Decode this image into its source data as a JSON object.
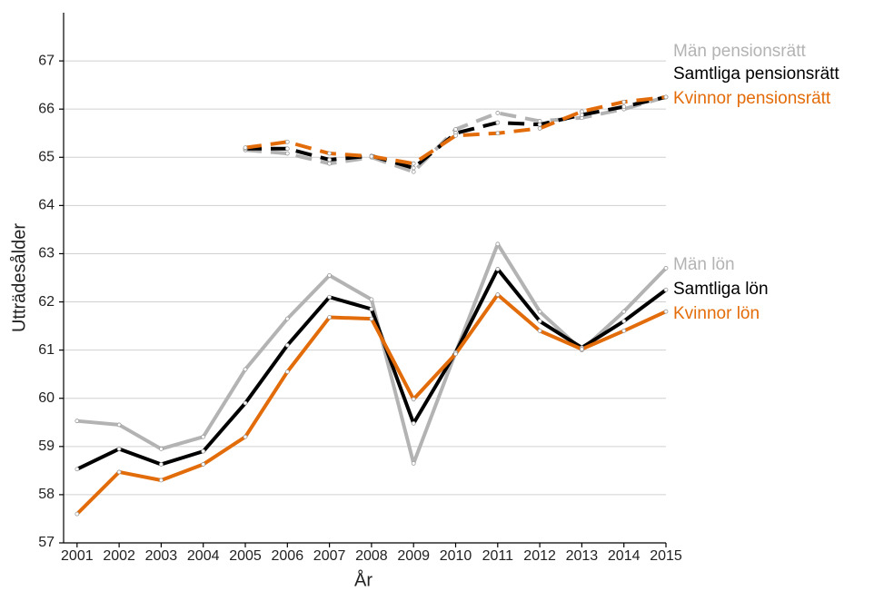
{
  "chart_data": {
    "type": "line",
    "y_label": "Utträdesålder",
    "x_label": "År",
    "x": [
      2001,
      2002,
      2003,
      2004,
      2005,
      2006,
      2007,
      2008,
      2009,
      2010,
      2011,
      2012,
      2013,
      2014,
      2015
    ],
    "xlim": [
      2000.68,
      2015
    ],
    "xticks": [
      2001,
      2002,
      2003,
      2004,
      2005,
      2006,
      2007,
      2008,
      2009,
      2010,
      2011,
      2012,
      2013,
      2014,
      2015
    ],
    "ylim": [
      57,
      68
    ],
    "yticks": [
      57,
      58,
      59,
      60,
      61,
      62,
      63,
      64,
      65,
      66,
      67
    ],
    "grid": true,
    "series": [
      {
        "name": "Män pensionsrätt",
        "color": "#b3b3b3",
        "dashed": true,
        "values": [
          null,
          null,
          null,
          null,
          65.15,
          65.08,
          64.87,
          65.0,
          64.7,
          65.58,
          65.92,
          65.75,
          65.82,
          66.0,
          66.25
        ]
      },
      {
        "name": "Samtliga pensionsrätt",
        "color": "#000000",
        "dashed": true,
        "values": [
          null,
          null,
          null,
          null,
          65.18,
          65.18,
          64.95,
          65.03,
          64.78,
          65.5,
          65.72,
          65.68,
          65.88,
          66.05,
          66.25
        ]
      },
      {
        "name": "Kvinnor pensionsrätt",
        "color": "#e36c0a",
        "dashed": true,
        "values": [
          null,
          null,
          null,
          null,
          65.2,
          65.32,
          65.08,
          65.02,
          64.87,
          65.45,
          65.5,
          65.6,
          65.95,
          66.15,
          66.25
        ]
      },
      {
        "name": "Män lön",
        "color": "#b3b3b3",
        "dashed": false,
        "values": [
          59.53,
          59.45,
          58.95,
          59.2,
          60.6,
          61.65,
          62.55,
          62.05,
          58.65,
          60.95,
          63.2,
          61.8,
          61.0,
          61.8,
          62.7
        ]
      },
      {
        "name": "Samtliga lön",
        "color": "#000000",
        "dashed": false,
        "values": [
          58.53,
          58.95,
          58.63,
          58.9,
          59.9,
          61.1,
          62.1,
          61.85,
          59.48,
          60.95,
          62.68,
          61.6,
          61.05,
          61.6,
          62.25
        ]
      },
      {
        "name": "Kvinnor lön",
        "color": "#e36c0a",
        "dashed": false,
        "values": [
          57.6,
          58.47,
          58.3,
          58.63,
          59.2,
          60.55,
          61.68,
          61.65,
          59.98,
          60.92,
          62.15,
          61.4,
          61.02,
          61.4,
          61.8
        ]
      }
    ]
  }
}
